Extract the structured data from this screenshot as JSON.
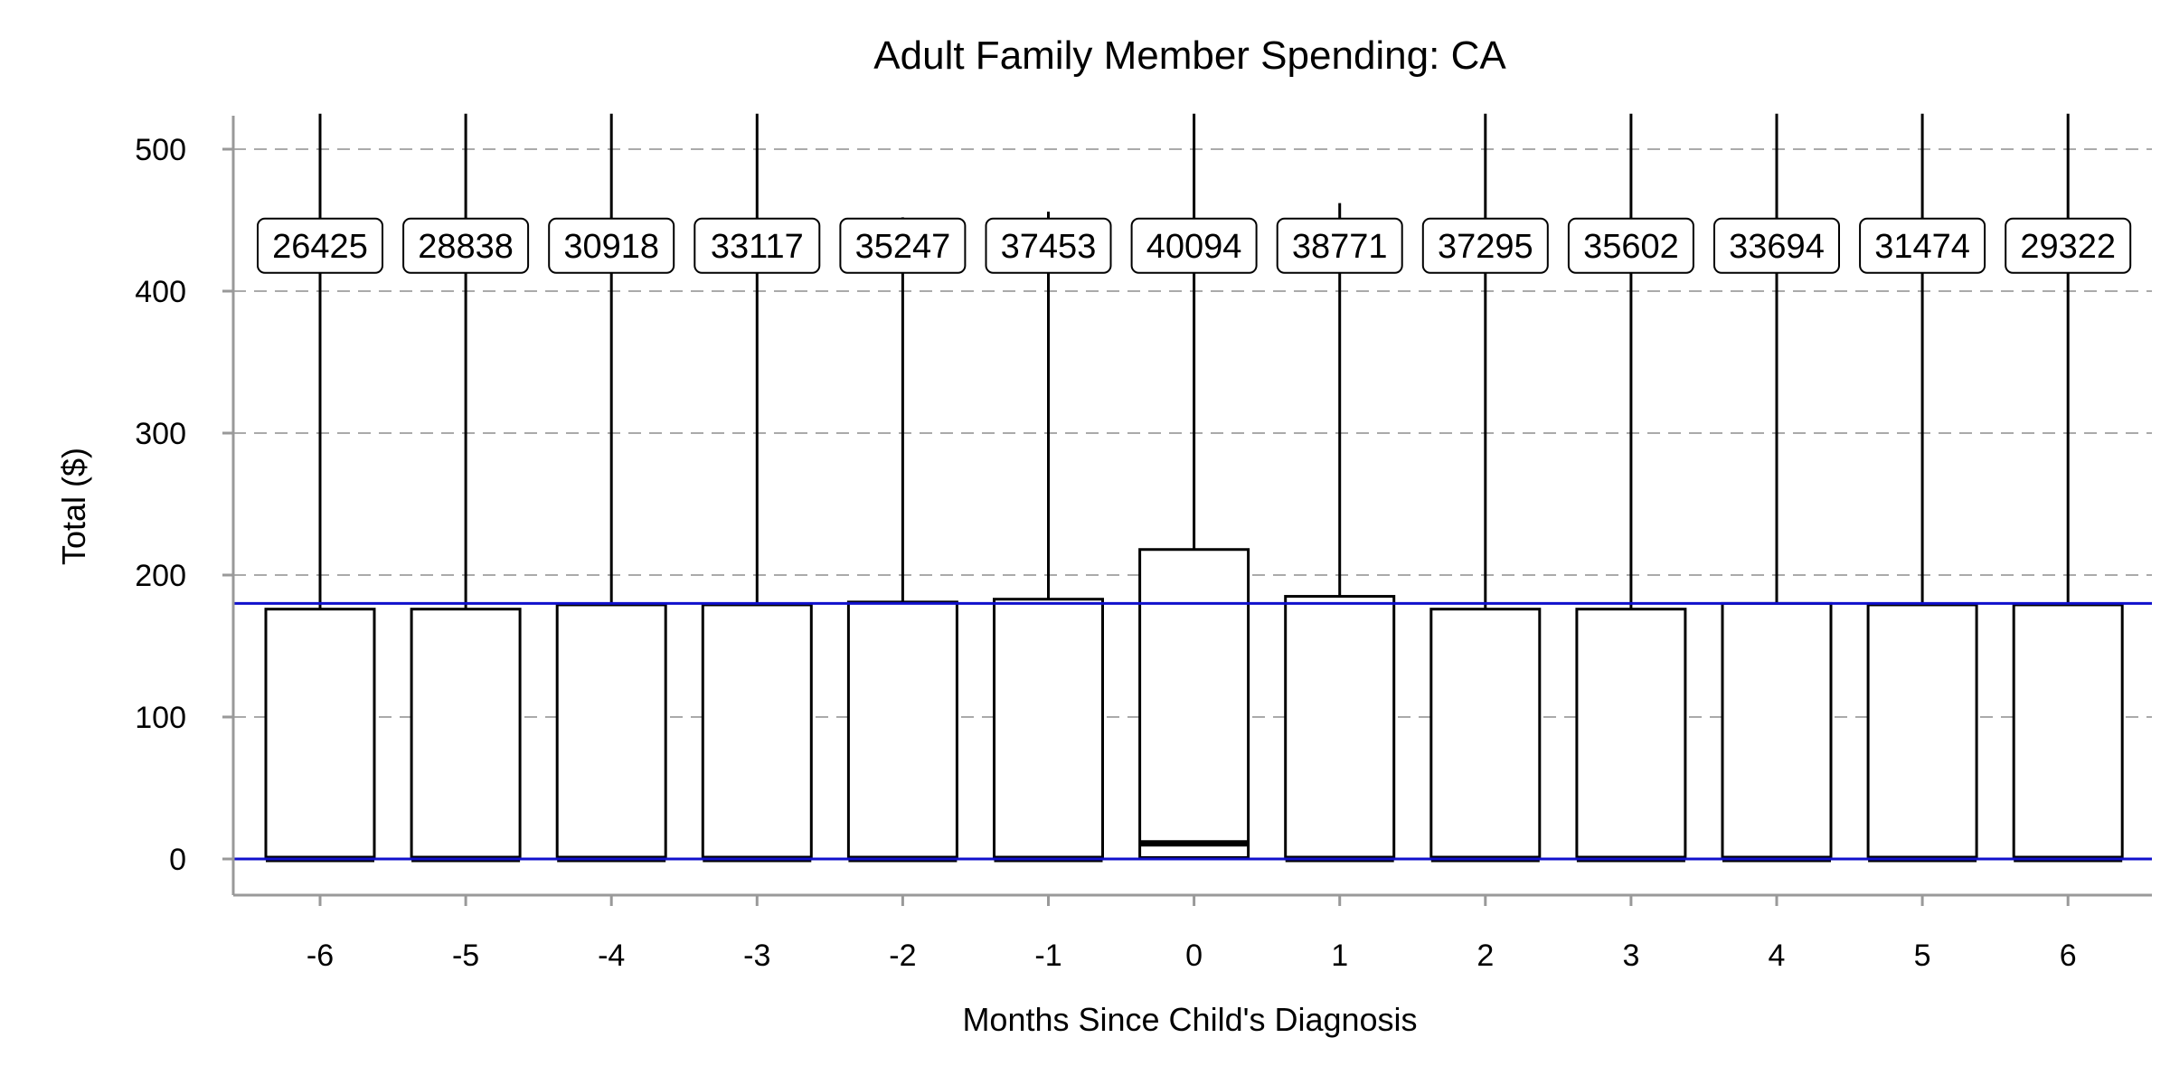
{
  "chart_data": {
    "type": "box",
    "title": "Adult Family Member Spending: CA",
    "xlabel": "Months Since Child's Diagnosis",
    "ylabel": "Total ($)",
    "ylim": [
      -25,
      525
    ],
    "yticks": [
      0,
      100,
      200,
      300,
      400,
      500
    ],
    "grid": "horizontal dashed",
    "reference_lines": [
      0,
      180
    ],
    "colors": {
      "box": "#000000",
      "reference": "#1010cc",
      "grid": "#aaaaaa",
      "axis": "#999999"
    },
    "boxes": [
      {
        "x": "-6",
        "n": "26425",
        "q1": 0,
        "median": 0,
        "q3": 176,
        "whisker_high": 525
      },
      {
        "x": "-5",
        "n": "28838",
        "q1": 0,
        "median": 0,
        "q3": 176,
        "whisker_high": 525
      },
      {
        "x": "-4",
        "n": "30918",
        "q1": 0,
        "median": 0,
        "q3": 179,
        "whisker_high": 525
      },
      {
        "x": "-3",
        "n": "33117",
        "q1": 0,
        "median": 0,
        "q3": 179,
        "whisker_high": 525
      },
      {
        "x": "-2",
        "n": "35247",
        "q1": 0,
        "median": 0,
        "q3": 181,
        "whisker_high": 452
      },
      {
        "x": "-1",
        "n": "37453",
        "q1": 0,
        "median": 0,
        "q3": 183,
        "whisker_high": 456
      },
      {
        "x": "0",
        "n": "40094",
        "q1": 1,
        "median": 11,
        "q3": 218,
        "whisker_high": 525
      },
      {
        "x": "1",
        "n": "38771",
        "q1": 0,
        "median": 0,
        "q3": 185,
        "whisker_high": 462
      },
      {
        "x": "2",
        "n": "37295",
        "q1": 0,
        "median": 0,
        "q3": 176,
        "whisker_high": 525
      },
      {
        "x": "3",
        "n": "35602",
        "q1": 0,
        "median": 0,
        "q3": 176,
        "whisker_high": 525
      },
      {
        "x": "4",
        "n": "33694",
        "q1": 0,
        "median": 0,
        "q3": 180,
        "whisker_high": 525
      },
      {
        "x": "5",
        "n": "31474",
        "q1": 0,
        "median": 0,
        "q3": 179,
        "whisker_high": 525
      },
      {
        "x": "6",
        "n": "29322",
        "q1": 0,
        "median": 0,
        "q3": 179,
        "whisker_high": 525
      }
    ],
    "count_label_value": 432
  }
}
